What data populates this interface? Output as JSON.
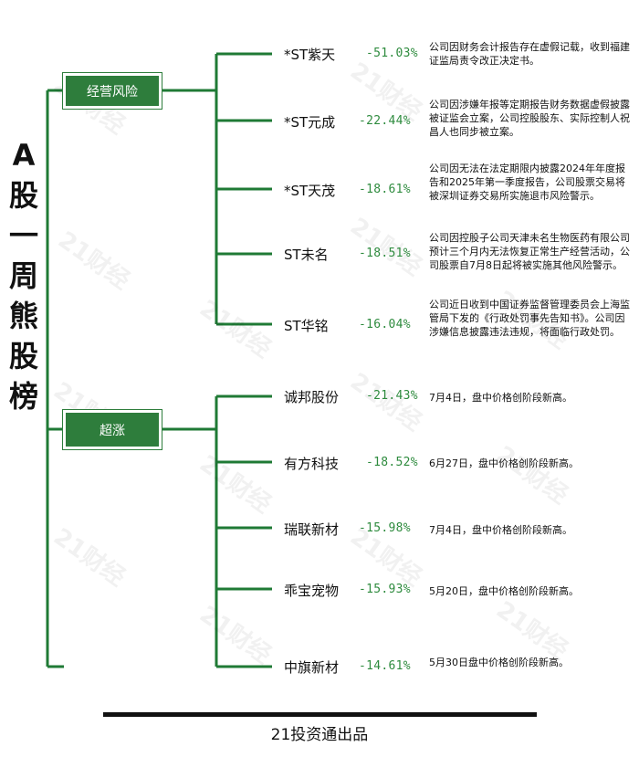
{
  "title_chars": [
    "A",
    "股",
    "一",
    "周",
    "熊",
    "股",
    "榜"
  ],
  "categories": [
    {
      "label": "经营风险"
    },
    {
      "label": "超涨"
    }
  ],
  "stocks": [
    {
      "name": "*ST紫天",
      "change": "-51.03%",
      "note": "公司因财务会计报告存在虚假记载，收到福建证监局责令改正决定书。"
    },
    {
      "name": "*ST元成",
      "change": "-22.44%",
      "note": "公司因涉嫌年报等定期报告财务数据虚假披露被证监会立案，公司控股股东、实际控制人祝昌人也同步被立案。"
    },
    {
      "name": "*ST天茂",
      "change": "-18.61%",
      "note": "公司因无法在法定期限内披露2024年年度报告和2025年第一季度报告，公司股票交易将被深圳证券交易所实施退市风险警示。"
    },
    {
      "name": "ST未名",
      "change": "-18.51%",
      "note": "公司因控股子公司天津未名生物医药有限公司预计三个月内无法恢复正常生产经营活动，公司股票自7月8日起将被实施其他风险警示。"
    },
    {
      "name": "ST华铭",
      "change": "-16.04%",
      "note": "公司近日收到中国证券监督管理委员会上海监管局下发的《行政处罚事先告知书》。公司因涉嫌信息披露违法违规，将面临行政处罚。"
    },
    {
      "name": "诚邦股份",
      "change": "-21.43%",
      "note": "7月4日，盘中价格创阶段新高。"
    },
    {
      "name": "有方科技",
      "change": "-18.52%",
      "note": "6月27日，盘中价格创阶段新高。"
    },
    {
      "name": "瑞联新材",
      "change": "-15.98%",
      "note": "7月4日，盘中价格创阶段新高。"
    },
    {
      "name": "乖宝宠物",
      "change": "-15.93%",
      "note": "5月20日，盘中价格创阶段新高。"
    },
    {
      "name": "中旗新材",
      "change": "-14.61%",
      "note": "5月30日盘中价格创阶段新高。"
    }
  ],
  "watermark_text": "21财经",
  "footer": "21投资通出品",
  "colors": {
    "line": "#1f7a35",
    "box": "#2e7d3c",
    "change": "#2e8b3e"
  }
}
